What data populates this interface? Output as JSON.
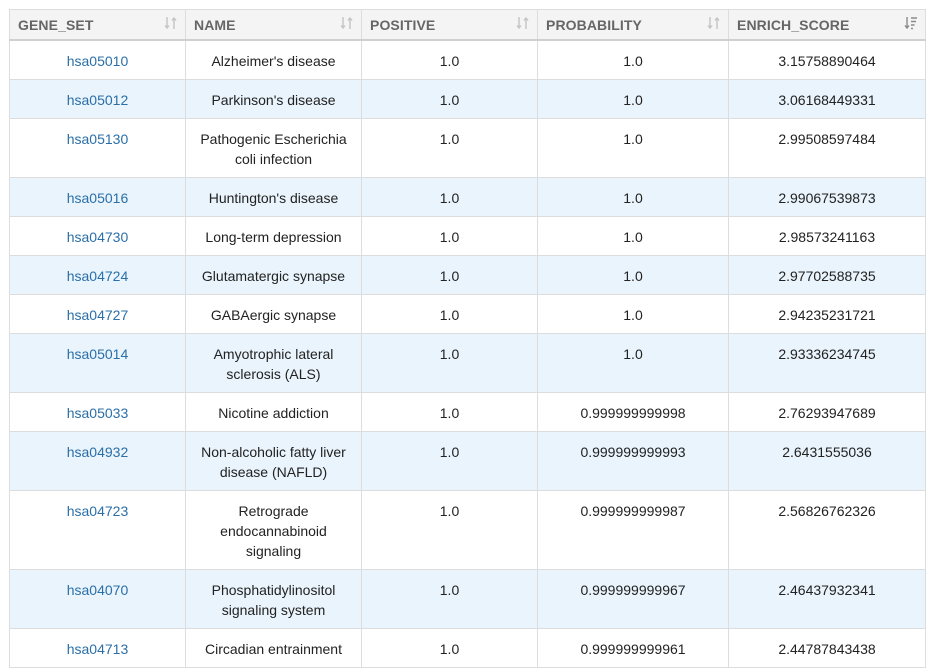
{
  "columns": [
    {
      "label": "GENE_SET",
      "sort_icon": "sort-both-icon"
    },
    {
      "label": "NAME",
      "sort_icon": "sort-both-icon"
    },
    {
      "label": "POSITIVE",
      "sort_icon": "sort-both-icon"
    },
    {
      "label": "PROBABILITY",
      "sort_icon": "sort-both-icon"
    },
    {
      "label": "ENRICH_SCORE",
      "sort_icon": "sort-desc-icon"
    }
  ],
  "colors": {
    "link": "#2a6fa8",
    "stripe": "#eaf4fc",
    "header_bg": "#f4f4f4",
    "border": "#dddddd"
  },
  "rows": [
    {
      "gene_set": "hsa05010",
      "name": "Alzheimer's disease",
      "positive": "1.0",
      "probability": "1.0",
      "enrich_score": "3.15758890464"
    },
    {
      "gene_set": "hsa05012",
      "name": "Parkinson's disease",
      "positive": "1.0",
      "probability": "1.0",
      "enrich_score": "3.06168449331"
    },
    {
      "gene_set": "hsa05130",
      "name": "Pathogenic Escherichia coli infection",
      "positive": "1.0",
      "probability": "1.0",
      "enrich_score": "2.99508597484"
    },
    {
      "gene_set": "hsa05016",
      "name": "Huntington's disease",
      "positive": "1.0",
      "probability": "1.0",
      "enrich_score": "2.99067539873"
    },
    {
      "gene_set": "hsa04730",
      "name": "Long-term depression",
      "positive": "1.0",
      "probability": "1.0",
      "enrich_score": "2.98573241163"
    },
    {
      "gene_set": "hsa04724",
      "name": "Glutamatergic synapse",
      "positive": "1.0",
      "probability": "1.0",
      "enrich_score": "2.97702588735"
    },
    {
      "gene_set": "hsa04727",
      "name": "GABAergic synapse",
      "positive": "1.0",
      "probability": "1.0",
      "enrich_score": "2.94235231721"
    },
    {
      "gene_set": "hsa05014",
      "name": "Amyotrophic lateral sclerosis (ALS)",
      "positive": "1.0",
      "probability": "1.0",
      "enrich_score": "2.93336234745"
    },
    {
      "gene_set": "hsa05033",
      "name": "Nicotine addiction",
      "positive": "1.0",
      "probability": "0.999999999998",
      "enrich_score": "2.76293947689"
    },
    {
      "gene_set": "hsa04932",
      "name": "Non-alcoholic fatty liver disease (NAFLD)",
      "positive": "1.0",
      "probability": "0.999999999993",
      "enrich_score": "2.6431555036"
    },
    {
      "gene_set": "hsa04723",
      "name": "Retrograde endocannabinoid signaling",
      "positive": "1.0",
      "probability": "0.999999999987",
      "enrich_score": "2.56826762326"
    },
    {
      "gene_set": "hsa04070",
      "name": "Phosphatidylinositol signaling system",
      "positive": "1.0",
      "probability": "0.999999999967",
      "enrich_score": "2.46437932341"
    },
    {
      "gene_set": "hsa04713",
      "name": "Circadian entrainment",
      "positive": "1.0",
      "probability": "0.999999999961",
      "enrich_score": "2.44787843438"
    }
  ]
}
